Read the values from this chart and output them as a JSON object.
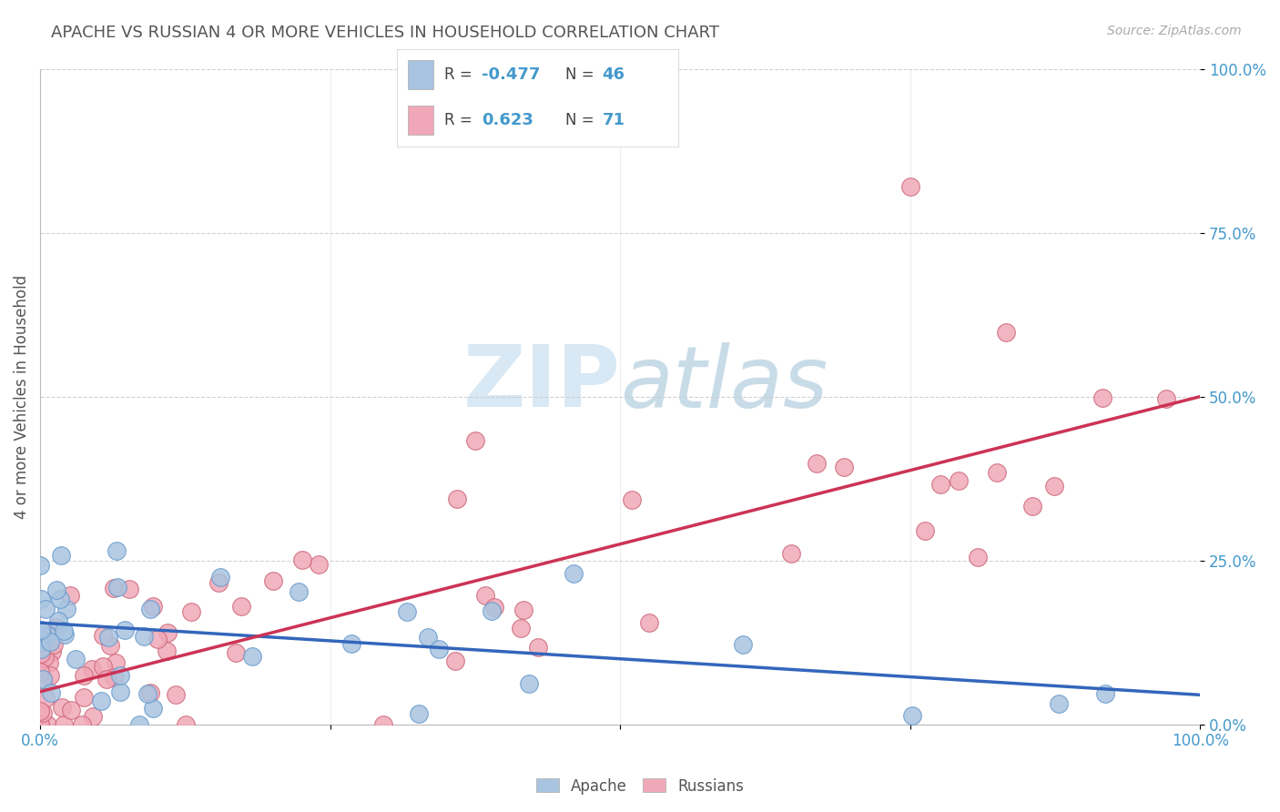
{
  "title": "APACHE VS RUSSIAN 4 OR MORE VEHICLES IN HOUSEHOLD CORRELATION CHART",
  "source": "Source: ZipAtlas.com",
  "ylabel": "4 or more Vehicles in Household",
  "legend_apache": "Apache",
  "legend_russians": "Russians",
  "apache_R": "-0.477",
  "apache_N": "46",
  "russian_R": "0.623",
  "russian_N": "71",
  "apache_color": "#a8c4e0",
  "apache_edge_color": "#6699cc",
  "russian_color": "#f0a8b8",
  "russian_edge_color": "#cc6677",
  "apache_line_color": "#3366bb",
  "russian_line_color": "#cc3355",
  "tick_color": "#4499cc",
  "title_color": "#555555",
  "source_color": "#aaaaaa",
  "ylabel_color": "#555555",
  "watermark_color": "#e0e8f0",
  "grid_color": "#cccccc",
  "background_color": "#ffffff",
  "xlim": [
    0,
    100
  ],
  "ylim": [
    0,
    100
  ],
  "ytick_positions": [
    0,
    25,
    50,
    75,
    100
  ],
  "ytick_labels": [
    "0.0%",
    "25.0%",
    "50.0%",
    "75.0%",
    "100.0%"
  ],
  "xtick_positions": [
    0,
    25,
    50,
    75,
    100
  ],
  "xtick_labels": [
    "0.0%",
    "",
    "",
    "",
    "100.0%"
  ],
  "apache_line_x0": 0,
  "apache_line_y0": 15.5,
  "apache_line_x1": 100,
  "apache_line_y1": 4.5,
  "russian_line_x0": 0,
  "russian_line_y0": 5.0,
  "russian_line_x1": 100,
  "russian_line_y1": 50.0
}
